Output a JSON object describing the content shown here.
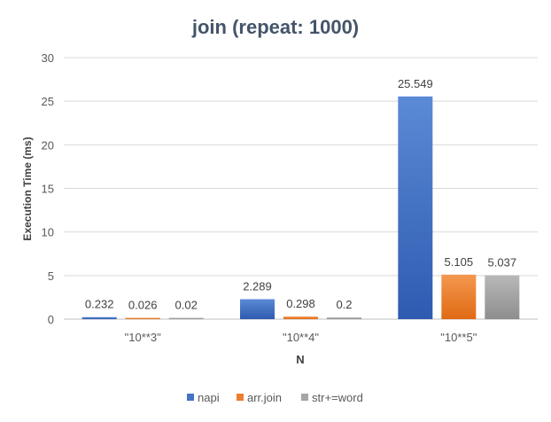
{
  "chart_data": {
    "type": "bar",
    "title": "join (repeat: 1000)",
    "xlabel": "N",
    "ylabel": "Execution Time (ms)",
    "categories": [
      "\"10**3\"",
      "\"10**4\"",
      "\"10**5\""
    ],
    "ylim": [
      0,
      30
    ],
    "yticks": [
      0,
      5,
      10,
      15,
      20,
      25,
      30
    ],
    "grid": true,
    "legend_position": "bottom",
    "series": [
      {
        "name": "napi",
        "values": [
          0.232,
          2.289,
          25.549
        ],
        "labels": [
          "0.232",
          "2.289",
          "25.549"
        ],
        "color": "#4472C4"
      },
      {
        "name": "arr.join",
        "values": [
          0.026,
          0.298,
          5.105
        ],
        "labels": [
          "0.026",
          "0.298",
          "5.105"
        ],
        "color": "#ED7D31"
      },
      {
        "name": "str+=word",
        "values": [
          0.02,
          0.2,
          5.037
        ],
        "labels": [
          "0.02",
          "0.2",
          "5.037"
        ],
        "color": "#A5A5A5"
      }
    ]
  }
}
